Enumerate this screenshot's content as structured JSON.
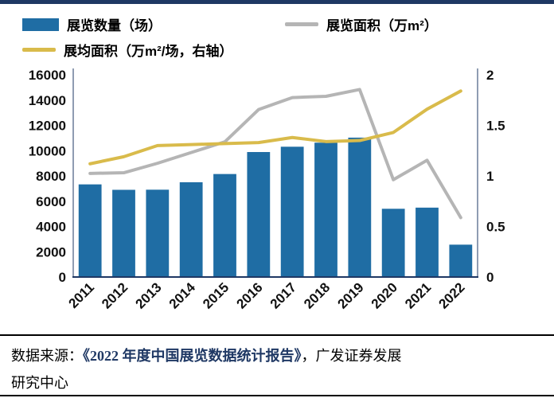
{
  "colors": {
    "accent_navy": "#1f3864",
    "bar_blue": "#1f6da4",
    "line_gray": "#b5b5b5",
    "line_yellow": "#d9bb4b",
    "axis_text": "#111111"
  },
  "legend": {
    "bar_label": "展览数量（场）",
    "gray_label": "展览面积（万m²）",
    "yellow_label": "展均面积（万m²/场，右轴）"
  },
  "footer": {
    "line1_prefix": "数据来源：",
    "line1_report": "《2022 年度中国展览数据统计报告》",
    "line1_suffix": "，广发证券发展",
    "line2": "研究中心"
  },
  "chart_data": {
    "type": "bar",
    "title": "",
    "categories": [
      "2011",
      "2012",
      "2013",
      "2014",
      "2015",
      "2016",
      "2017",
      "2018",
      "2019",
      "2020",
      "2021",
      "2022"
    ],
    "series": [
      {
        "name": "展览数量（场）",
        "type": "bar",
        "axis": "left",
        "color": "#1f6da4",
        "values": [
          7330,
          6900,
          6910,
          7500,
          8150,
          9890,
          10310,
          10630,
          11030,
          5400,
          5490,
          2560
        ]
      },
      {
        "name": "展览面积（万m²）",
        "type": "line",
        "axis": "left",
        "color": "#b5b5b5",
        "values": [
          8200,
          8250,
          9000,
          9850,
          10700,
          13250,
          14200,
          14300,
          14840,
          7700,
          9240,
          4700
        ]
      },
      {
        "name": "展均面积（万m²/场，右轴）",
        "type": "line",
        "axis": "right",
        "color": "#d9bb4b",
        "values": [
          1.12,
          1.19,
          1.3,
          1.31,
          1.32,
          1.33,
          1.38,
          1.34,
          1.35,
          1.43,
          1.66,
          1.84
        ]
      }
    ],
    "left_axis": {
      "min": 0,
      "max": 16000,
      "step": 2000
    },
    "right_axis": {
      "min": 0,
      "max": 2,
      "step": 0.5
    },
    "legend_position": "top",
    "grid": false
  }
}
